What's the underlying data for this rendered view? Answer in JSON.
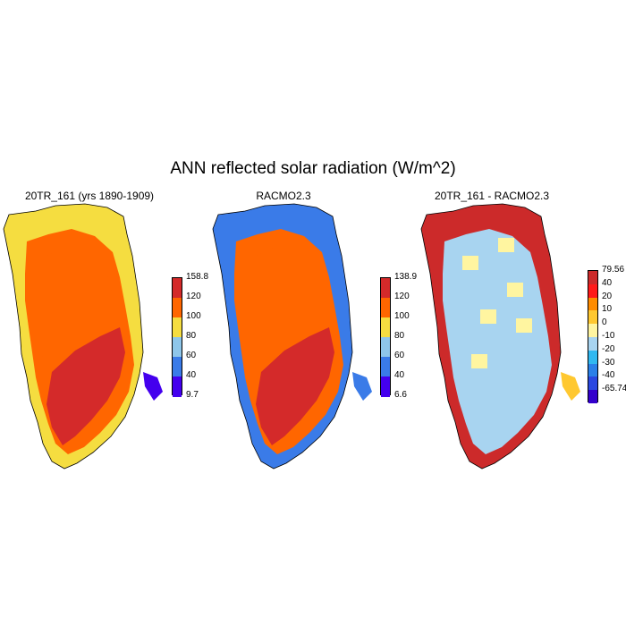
{
  "figure": {
    "title": "ANN reflected solar radiation (W/m^2)"
  },
  "panels": [
    {
      "title": "20TR_161 (yrs 1890-1909)",
      "colorbar": {
        "labels": [
          "158.8",
          "120",
          "100",
          "80",
          "60",
          "40",
          "9.7"
        ],
        "colors": [
          "#d42a2a",
          "#ff6600",
          "#f5dd40",
          "#8ec6ea",
          "#3a7be8",
          "#4400ee"
        ]
      }
    },
    {
      "title": "RACMO2.3",
      "colorbar": {
        "labels": [
          "138.9",
          "120",
          "100",
          "80",
          "60",
          "40",
          "6.6"
        ],
        "colors": [
          "#d42a2a",
          "#ff6600",
          "#f5dd40",
          "#8ec6ea",
          "#3a7be8",
          "#4400ee"
        ]
      }
    },
    {
      "title": "20TR_161 - RACMO2.3",
      "colorbar": {
        "labels": [
          "79.56",
          "40",
          "20",
          "10",
          "0",
          "-10",
          "-20",
          "-30",
          "-40",
          "-65.74"
        ],
        "colors": [
          "#cc2a2a",
          "#ff1a1a",
          "#ff8c00",
          "#ffc830",
          "#fff5a0",
          "#a8d4f0",
          "#30b8f0",
          "#2a80e8",
          "#2a48e0",
          "#3300cc"
        ]
      }
    }
  ]
}
